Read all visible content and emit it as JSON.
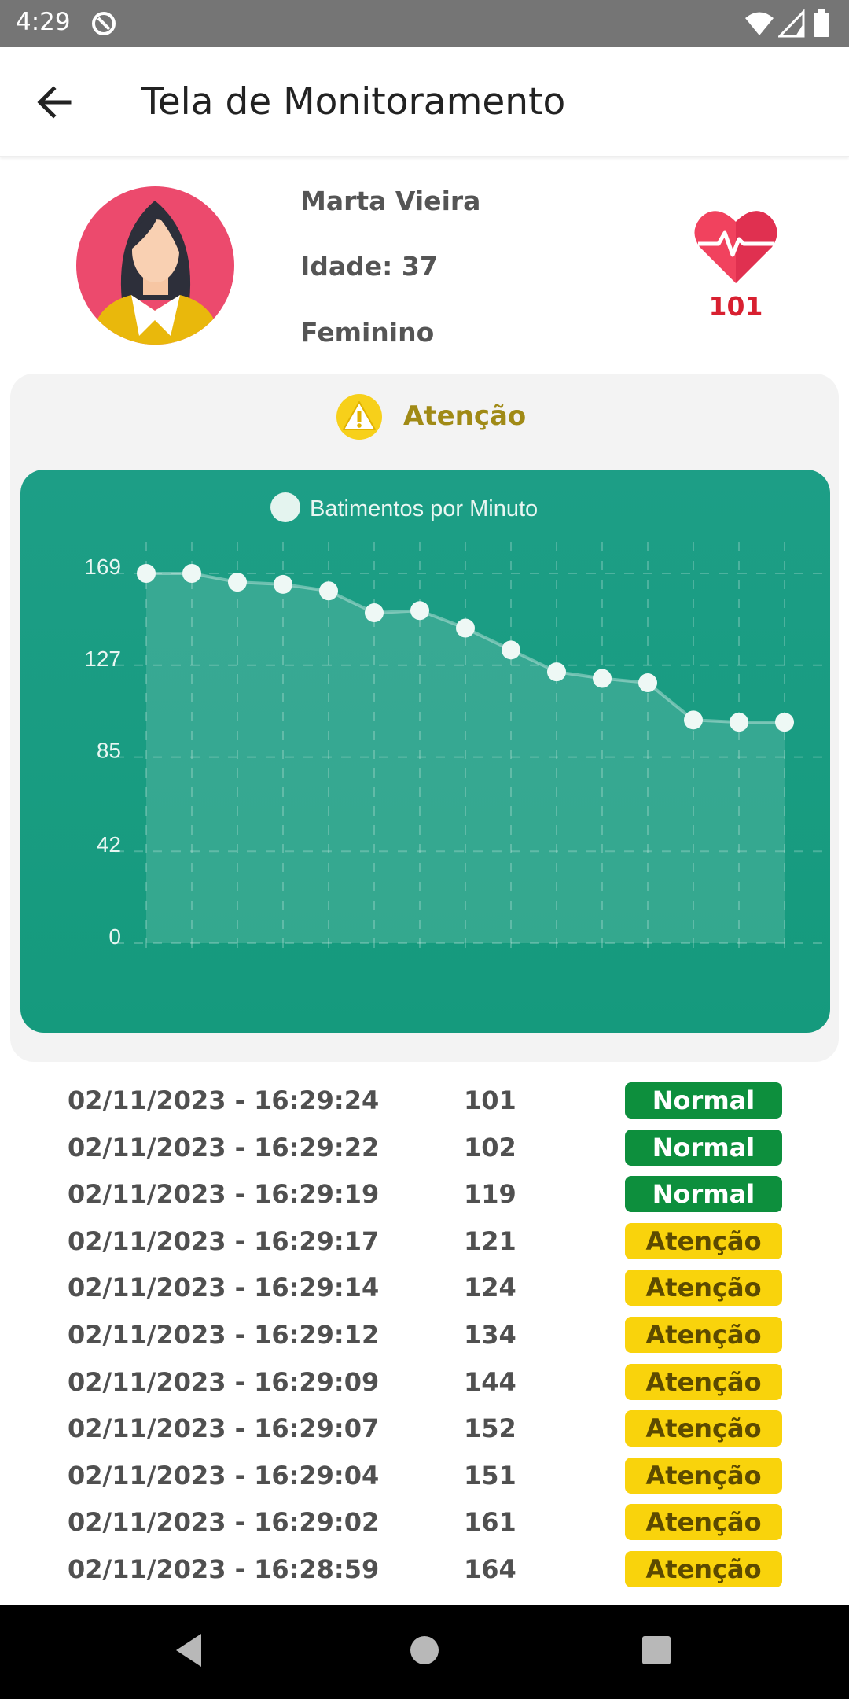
{
  "status_bar": {
    "time": "4:29"
  },
  "app_bar": {
    "title": "Tela de Monitoramento"
  },
  "patient": {
    "name": "Marta Vieira",
    "age": "Idade: 37",
    "gender": "Feminino",
    "bpm": "101"
  },
  "status": {
    "label": "Atenção"
  },
  "colors": {
    "normal": "#0d8f3d",
    "atencao": "#f9d30c",
    "chart_bg": "#159a7d",
    "heart": "#f1425e"
  },
  "chart_data": {
    "type": "line",
    "legend": "Batimentos por Minuto",
    "y_ticks": [
      "169",
      "127",
      "85",
      "42",
      "0"
    ],
    "ylim": [
      0,
      169
    ],
    "series": [
      {
        "name": "Batimentos por Minuto",
        "values": [
          169,
          169,
          165,
          164,
          161,
          151,
          152,
          144,
          134,
          124,
          121,
          119,
          102,
          101,
          101
        ]
      }
    ],
    "grid": true,
    "fill_area": true,
    "legend_position": "top-center"
  },
  "readings": [
    {
      "time": "02/11/2023 - 16:29:24",
      "bpm": "101",
      "status": "Normal",
      "level": "normal"
    },
    {
      "time": "02/11/2023 - 16:29:22",
      "bpm": "102",
      "status": "Normal",
      "level": "normal"
    },
    {
      "time": "02/11/2023 - 16:29:19",
      "bpm": "119",
      "status": "Normal",
      "level": "normal"
    },
    {
      "time": "02/11/2023 - 16:29:17",
      "bpm": "121",
      "status": "Atenção",
      "level": "atencao"
    },
    {
      "time": "02/11/2023 - 16:29:14",
      "bpm": "124",
      "status": "Atenção",
      "level": "atencao"
    },
    {
      "time": "02/11/2023 - 16:29:12",
      "bpm": "134",
      "status": "Atenção",
      "level": "atencao"
    },
    {
      "time": "02/11/2023 - 16:29:09",
      "bpm": "144",
      "status": "Atenção",
      "level": "atencao"
    },
    {
      "time": "02/11/2023 - 16:29:07",
      "bpm": "152",
      "status": "Atenção",
      "level": "atencao"
    },
    {
      "time": "02/11/2023 - 16:29:04",
      "bpm": "151",
      "status": "Atenção",
      "level": "atencao"
    },
    {
      "time": "02/11/2023 - 16:29:02",
      "bpm": "161",
      "status": "Atenção",
      "level": "atencao"
    },
    {
      "time": "02/11/2023 - 16:28:59",
      "bpm": "164",
      "status": "Atenção",
      "level": "atencao"
    }
  ]
}
